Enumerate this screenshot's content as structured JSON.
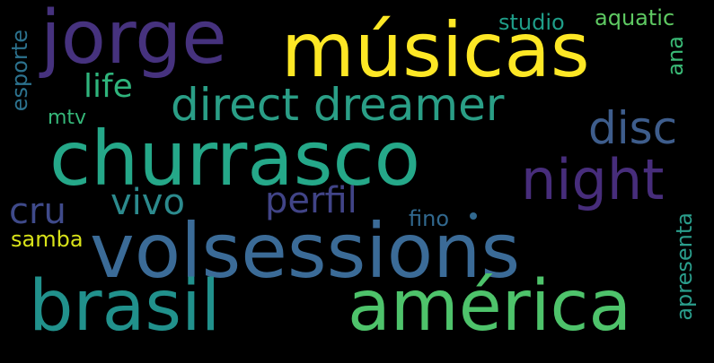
{
  "words": {
    "churrasco": {
      "text": "churrasco",
      "color": "#25a889"
    },
    "volsessions": {
      "text": "volsessions",
      "color": "#3b6b97"
    },
    "musicas": {
      "text": "músicas",
      "color": "#fde725"
    },
    "brasil": {
      "text": "brasil",
      "color": "#21918c"
    },
    "america": {
      "text": "américa",
      "color": "#4ec36b"
    },
    "jorge": {
      "text": "jorge",
      "color": "#46327e"
    },
    "direct_dreamer": {
      "text": "direct dreamer",
      "color": "#2a9e86"
    },
    "night": {
      "text": "night",
      "color": "#472d7b"
    },
    "disc": {
      "text": "disc",
      "color": "#3e5d8c"
    },
    "perfil": {
      "text": "perfil",
      "color": "#414487"
    },
    "vivo": {
      "text": "vivo",
      "color": "#2c8a8d"
    },
    "cru": {
      "text": "cru",
      "color": "#3f4a8a"
    },
    "life": {
      "text": "life",
      "color": "#2fb47c"
    },
    "studio": {
      "text": "studio",
      "color": "#1f9e89"
    },
    "aquatic": {
      "text": "aquatic",
      "color": "#5ec962"
    },
    "esporte": {
      "text": "esporte",
      "color": "#2c728e"
    },
    "ana": {
      "text": "ana",
      "color": "#3aba76"
    },
    "mtv": {
      "text": "mtv",
      "color": "#35b779"
    },
    "samba": {
      "text": "samba",
      "color": "#d8e219"
    },
    "fino": {
      "text": "fino",
      "color": "#31688e"
    },
    "apresenta": {
      "text": "apresenta",
      "color": "#2a9d8b"
    }
  },
  "dot_color": "#31688e"
}
